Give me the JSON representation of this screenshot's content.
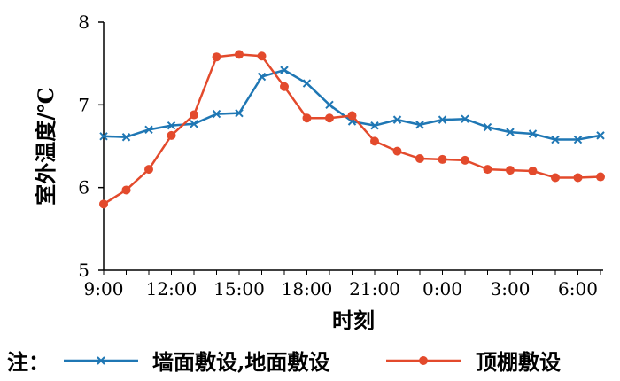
{
  "chart_data": {
    "type": "line",
    "title": "",
    "xlabel": "时刻",
    "ylabel": "室外温度/℃",
    "ylim": [
      5,
      8
    ],
    "yticks": [
      5,
      6,
      7,
      8
    ],
    "xtick_labels": [
      "9:00",
      "12:00",
      "15:00",
      "18:00",
      "21:00",
      "0:00",
      "3:00",
      "6:00"
    ],
    "legend_note": "注：",
    "legend_position": "bottom",
    "grid": false,
    "series": [
      {
        "name": "墙面敷设,地面敷设",
        "color": "#1f77b4",
        "marker": "x",
        "x": [
          "9:00",
          "10:00",
          "11:00",
          "12:00",
          "13:00",
          "14:00",
          "15:00",
          "16:00",
          "17:00",
          "18:00",
          "19:00",
          "20:00",
          "21:00",
          "22:00",
          "23:00",
          "0:00",
          "1:00",
          "2:00",
          "3:00",
          "4:00",
          "5:00",
          "6:00",
          "7:00"
        ],
        "values": [
          6.62,
          6.61,
          6.7,
          6.75,
          6.77,
          6.89,
          6.9,
          7.34,
          7.42,
          7.26,
          7.0,
          6.8,
          6.75,
          6.82,
          6.76,
          6.82,
          6.83,
          6.73,
          6.67,
          6.65,
          6.58,
          6.58,
          6.63
        ]
      },
      {
        "name": "顶棚敷设",
        "color": "#e34a2c",
        "marker": "circle",
        "x": [
          "9:00",
          "10:00",
          "11:00",
          "12:00",
          "13:00",
          "14:00",
          "15:00",
          "16:00",
          "17:00",
          "18:00",
          "19:00",
          "20:00",
          "21:00",
          "22:00",
          "23:00",
          "0:00",
          "1:00",
          "2:00",
          "3:00",
          "4:00",
          "5:00",
          "6:00",
          "7:00"
        ],
        "values": [
          5.8,
          5.97,
          6.22,
          6.63,
          6.88,
          7.58,
          7.61,
          7.59,
          7.22,
          6.84,
          6.84,
          6.87,
          6.56,
          6.44,
          6.35,
          6.34,
          6.33,
          6.22,
          6.21,
          6.2,
          6.12,
          6.12,
          6.13
        ]
      }
    ]
  }
}
